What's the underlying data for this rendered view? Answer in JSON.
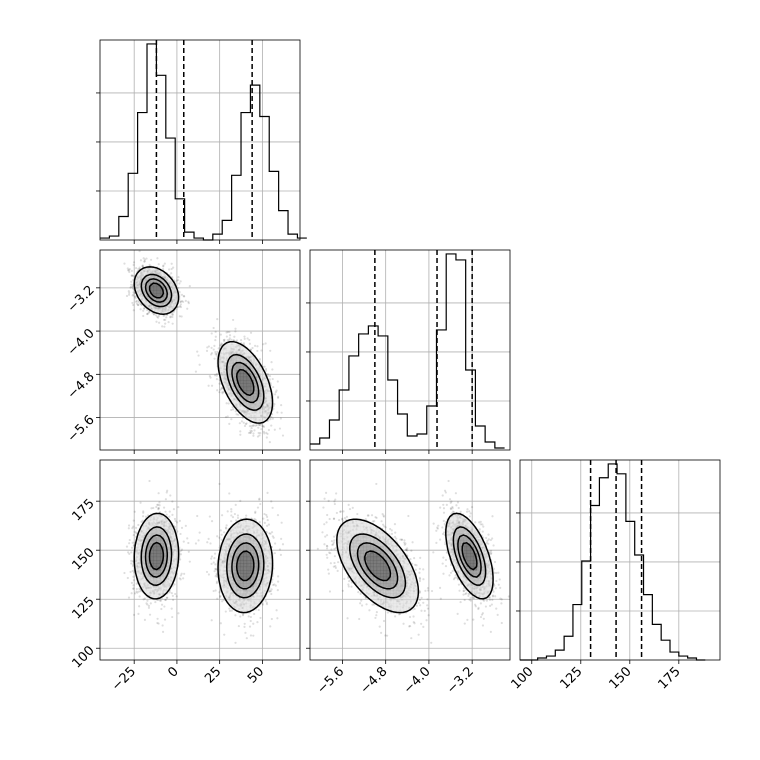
{
  "chart_data": {
    "type": "corner",
    "parameters": [
      {
        "name": "",
        "range": [
          -45,
          72
        ],
        "ticks": [
          -25,
          0,
          25,
          50
        ],
        "tick_labels": [
          "−25",
          "0",
          "25",
          "50"
        ]
      },
      {
        "name": "",
        "range": [
          -6.2,
          -2.5
        ],
        "ticks": [
          -5.6,
          -4.8,
          -4.0,
          -3.2
        ],
        "tick_labels": [
          "−5.6",
          "−4.8",
          "−4.0",
          "−3.2"
        ]
      },
      {
        "name": "",
        "range": [
          94,
          196
        ],
        "ticks": [
          100,
          125,
          150,
          175
        ],
        "tick_labels": [
          "100",
          "125",
          "150",
          "175"
        ]
      }
    ],
    "quantiles": [
      [
        -12,
        4,
        44
      ],
      [
        -5.0,
        -3.85,
        -3.2
      ],
      [
        130,
        143,
        156
      ]
    ],
    "histograms": [
      {
        "bin_start": -45,
        "bin_width": 5.5,
        "counts": [
          1,
          2,
          12,
          34,
          65,
          100,
          84,
          52,
          21,
          4,
          1,
          0,
          3,
          10,
          33,
          65,
          79,
          63,
          35,
          15,
          3,
          1
        ]
      },
      {
        "bin_start": -6.2,
        "bin_width": 0.18,
        "counts": [
          3,
          6,
          15,
          30,
          47,
          58,
          62,
          57,
          35,
          18,
          7,
          8,
          22,
          60,
          98,
          95,
          40,
          12,
          4,
          1
        ]
      },
      {
        "bin_start": 94,
        "bin_width": 4.5,
        "counts": [
          0,
          0,
          1,
          2,
          5,
          12,
          28,
          50,
          78,
          92,
          99,
          94,
          70,
          53,
          33,
          18,
          10,
          4,
          2,
          1,
          0
        ]
      }
    ],
    "clusters": [
      {
        "mean": [
          -12,
          -3.25,
          147
        ],
        "sd": [
          6.5,
          0.22,
          11
        ],
        "corr": [
          [
            1,
            -0.3,
            0.05
          ],
          [
            -0.3,
            1,
            -0.55
          ],
          [
            0.05,
            -0.55,
            1
          ]
        ]
      },
      {
        "mean": [
          40,
          -4.95,
          142
        ],
        "sd": [
          8,
          0.38,
          12
        ],
        "corr": [
          [
            1,
            -0.5,
            0.05
          ],
          [
            -0.5,
            1,
            -0.55
          ],
          [
            0.05,
            -0.55,
            1
          ]
        ]
      }
    ],
    "grid": true
  }
}
